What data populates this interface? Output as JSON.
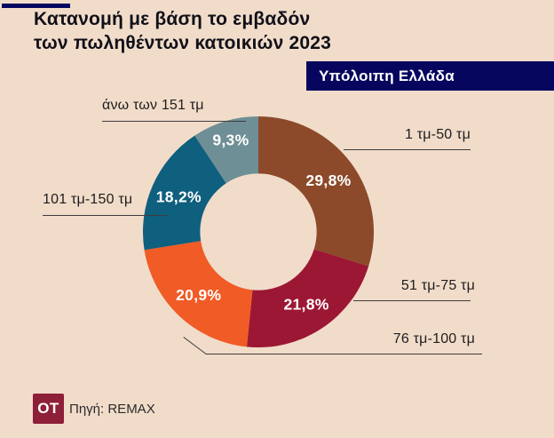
{
  "background": "#f1dcca",
  "accent_navy": "#06065f",
  "title": {
    "line1": "Κατανομή με βάση το εμβαδόν",
    "line2": "των πωληθέντων κατοικιών 2023"
  },
  "badge": {
    "label": "Υπόλοιπη Ελλάδα",
    "bg": "#06065f"
  },
  "chart_data": {
    "type": "pie",
    "subtype": "donut",
    "title": "Κατανομή με βάση το εμβαδόν των πωληθέντων κατοικιών 2023",
    "region_label": "Υπόλοιπη Ελλάδα",
    "unit": "%",
    "direction": "clockwise",
    "start_angle_deg": 0,
    "inner_radius_ratio": 0.505,
    "slices": [
      {
        "label": "1 τμ-50 τμ",
        "value": 29.8,
        "display": "29,8%",
        "color": "#8c4a2b"
      },
      {
        "label": "51 τμ-75 τμ",
        "value": 21.8,
        "display": "21,8%",
        "color": "#9c1734"
      },
      {
        "label": "76 τμ-100 τμ",
        "value": 20.9,
        "display": "20,9%",
        "color": "#f15b25"
      },
      {
        "label": "101 τμ-150 τμ",
        "value": 18.2,
        "display": "18,2%",
        "color": "#0f5f7e"
      },
      {
        "label": "άνω των 151 τμ",
        "value": 9.3,
        "display": "9,3%",
        "color": "#6f8f96"
      }
    ]
  },
  "footer": {
    "logo_text": "OT",
    "logo_bg": "#8e1f38",
    "source": "Πηγή: REMAX"
  }
}
